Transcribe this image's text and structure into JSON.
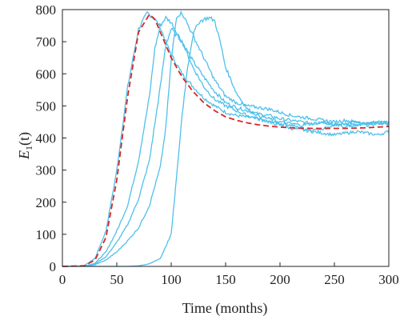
{
  "chart_data": {
    "type": "line",
    "title": "",
    "xlabel": "Time (months)",
    "ylabel_main": "E",
    "ylabel_sub": "1",
    "ylabel_tail": "(t)",
    "xlim": [
      0,
      300
    ],
    "ylim": [
      0,
      800
    ],
    "xticks": [
      0,
      50,
      100,
      150,
      200,
      250,
      300
    ],
    "yticks": [
      0,
      100,
      200,
      300,
      400,
      500,
      600,
      700,
      800
    ],
    "grid": false,
    "legend": "none",
    "colors": {
      "stochastic": "#4fc0ea",
      "deterministic": "#d62728",
      "axis": "#222222"
    },
    "series": [
      {
        "style": "dashed",
        "x": [
          0,
          20,
          30,
          40,
          50,
          60,
          70,
          80,
          85,
          90,
          100,
          110,
          120,
          130,
          140,
          150,
          160,
          170,
          180,
          190,
          200,
          210,
          220,
          230,
          240,
          250,
          260,
          270,
          280,
          290,
          300
        ],
        "y": [
          0,
          2,
          20,
          90,
          270,
          530,
          730,
          785,
          770,
          730,
          650,
          590,
          545,
          510,
          485,
          466,
          455,
          447,
          441,
          437,
          434,
          432,
          431,
          430,
          430,
          430,
          430,
          431,
          432,
          434,
          436
        ]
      },
      {
        "style": "solid",
        "x": [
          0,
          20,
          30,
          40,
          50,
          60,
          70,
          78,
          85,
          90,
          95,
          100,
          110,
          120,
          130,
          140,
          150,
          160,
          170,
          180,
          190,
          200,
          210,
          220,
          230,
          240,
          250,
          260,
          270,
          280,
          290,
          300
        ],
        "y": [
          0,
          2,
          25,
          110,
          300,
          560,
          740,
          790,
          770,
          745,
          700,
          660,
          600,
          560,
          525,
          500,
          480,
          470,
          465,
          460,
          450,
          445,
          440,
          430,
          425,
          430,
          440,
          435,
          440,
          445,
          450,
          445
        ]
      },
      {
        "style": "solid",
        "x": [
          0,
          20,
          30,
          40,
          50,
          60,
          70,
          80,
          85,
          90,
          95,
          100,
          110,
          120,
          130,
          140,
          150,
          160,
          170,
          180,
          190,
          200,
          210,
          220,
          230,
          240,
          250,
          260,
          270,
          280,
          290,
          300
        ],
        "y": [
          0,
          1,
          10,
          45,
          110,
          190,
          330,
          530,
          680,
          750,
          775,
          760,
          700,
          640,
          590,
          545,
          510,
          495,
          485,
          475,
          470,
          460,
          455,
          450,
          445,
          450,
          440,
          445,
          450,
          440,
          445,
          450
        ]
      },
      {
        "style": "solid",
        "x": [
          0,
          20,
          30,
          40,
          50,
          60,
          70,
          80,
          90,
          95,
          100,
          110,
          120,
          130,
          140,
          150,
          160,
          170,
          180,
          190,
          200,
          210,
          220,
          230,
          240,
          250,
          260,
          270,
          280,
          290,
          300
        ],
        "y": [
          0,
          1,
          8,
          30,
          75,
          130,
          210,
          330,
          560,
          690,
          740,
          700,
          620,
          560,
          520,
          500,
          485,
          470,
          460,
          450,
          440,
          430,
          425,
          420,
          415,
          410,
          415,
          420,
          415,
          410,
          420
        ]
      },
      {
        "style": "solid",
        "x": [
          0,
          20,
          30,
          40,
          50,
          60,
          70,
          80,
          90,
          95,
          100,
          105,
          110,
          120,
          130,
          140,
          150,
          160,
          170,
          180,
          190,
          200,
          210,
          220,
          230,
          240,
          250,
          260,
          270,
          280,
          290,
          300
        ],
        "y": [
          0,
          1,
          5,
          20,
          45,
          80,
          120,
          190,
          310,
          430,
          640,
          780,
          790,
          720,
          650,
          580,
          530,
          510,
          500,
          495,
          490,
          480,
          470,
          465,
          460,
          455,
          450,
          455,
          450,
          445,
          450,
          440
        ]
      },
      {
        "style": "solid",
        "x": [
          0,
          60,
          70,
          80,
          90,
          100,
          105,
          110,
          115,
          120,
          125,
          130,
          135,
          140,
          145,
          150,
          160,
          170,
          180,
          190,
          200,
          210,
          220,
          230,
          240,
          250,
          260,
          270,
          280,
          290,
          300
        ],
        "y": [
          0,
          0,
          2,
          8,
          25,
          100,
          280,
          470,
          620,
          720,
          760,
          770,
          775,
          765,
          700,
          620,
          540,
          490,
          470,
          460,
          450,
          445,
          440,
          445,
          450,
          440,
          445,
          440,
          445,
          450,
          445
        ]
      }
    ]
  }
}
